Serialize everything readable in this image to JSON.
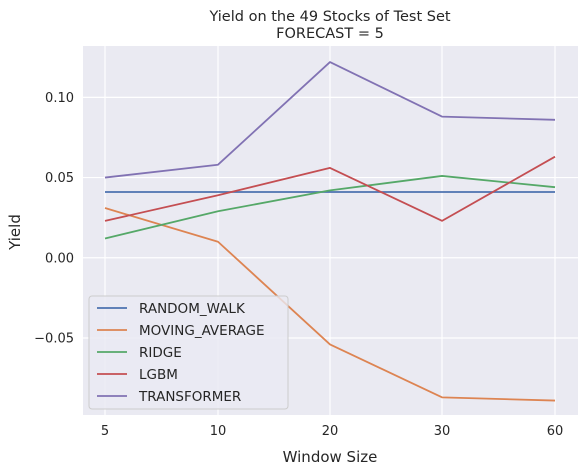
{
  "chart_data": {
    "type": "line",
    "title": "Yield on the 49 Stocks of Test Set",
    "subtitle": "FORECAST = 5",
    "xlabel": "Window Size",
    "ylabel": "Yield",
    "categories": [
      "5",
      "10",
      "20",
      "30",
      "60"
    ],
    "ylim": [
      -0.098,
      0.132
    ],
    "yticks": [
      -0.05,
      0.0,
      0.05,
      0.1
    ],
    "ytick_labels": [
      "−0.05",
      "0.00",
      "0.05",
      "0.10"
    ],
    "grid": true,
    "legend_position": "lower-left",
    "series": [
      {
        "name": "RANDOM_WALK",
        "color": "#4c72b0",
        "values": [
          0.041,
          0.041,
          0.041,
          0.041,
          0.041
        ]
      },
      {
        "name": "MOVING_AVERAGE",
        "color": "#dd8452",
        "values": [
          0.031,
          0.01,
          -0.054,
          -0.087,
          -0.089
        ]
      },
      {
        "name": "RIDGE",
        "color": "#55a868",
        "values": [
          0.012,
          0.029,
          0.042,
          0.051,
          0.044
        ]
      },
      {
        "name": "LGBM",
        "color": "#c44e52",
        "values": [
          0.023,
          0.039,
          0.056,
          0.023,
          0.063
        ]
      },
      {
        "name": "TRANSFORMER",
        "color": "#8172b3",
        "values": [
          0.05,
          0.058,
          0.122,
          0.088,
          0.086
        ]
      }
    ]
  }
}
